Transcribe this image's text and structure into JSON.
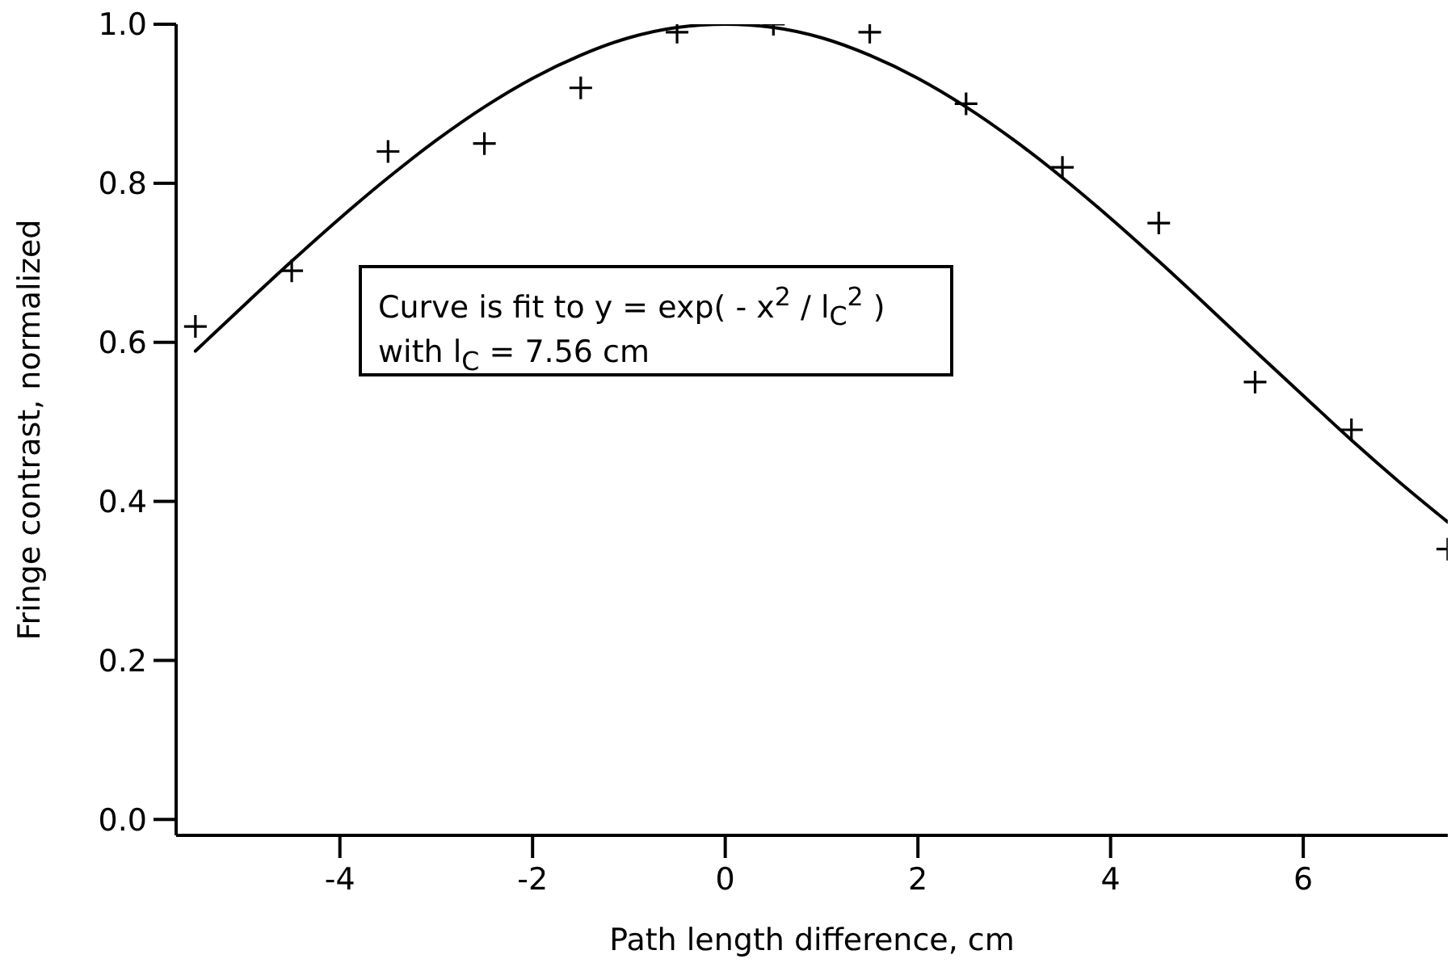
{
  "chart_data": {
    "type": "scatter",
    "xlabel": "Path length difference, cm",
    "ylabel": "Fringe contrast, normalized",
    "annotations": [
      "Curve is fit to y = exp( - x$^{2}$ / l$_{C}$$^{2}$ )",
      "with l$_{C}$ = 7.56 cm"
    ],
    "xlim": [
      -5.7,
      7.5
    ],
    "ylim": [
      -0.02,
      1.0
    ],
    "xticks": [
      -4,
      -2,
      0,
      2,
      4,
      6
    ],
    "yticks": [
      {
        "value": 0,
        "label": "0.0"
      },
      0.2,
      0.4,
      0.6,
      0.8,
      {
        "value": 1,
        "label": "1.0"
      }
    ],
    "series": [
      {
        "color": "#000000",
        "marker": "cross",
        "x": [
          -5.5,
          -4.5,
          -3.5,
          -2.5,
          -1.5,
          -0.5,
          0.5,
          1.5,
          2.5,
          3.5,
          4.5,
          5.5,
          6.5,
          7.5
        ],
        "values": [
          0.62,
          0.69,
          0.84,
          0.85,
          0.92,
          0.99,
          1.0,
          0.99,
          0.9,
          0.82,
          0.75,
          0.55,
          0.49,
          0.34
        ]
      },
      {
        "type": "line",
        "color": "#000000",
        "marker": "none",
        "line_style": "solid",
        "x": [
          -5.5,
          -5,
          -4.5,
          -4,
          -3.5,
          -3,
          -2.5,
          -2,
          -1.5,
          -1,
          -0.5,
          0,
          0.5,
          1,
          1.5,
          2,
          2.5,
          3,
          3.5,
          4,
          4.5,
          5,
          5.5,
          6,
          6.5,
          7,
          7.5
        ],
        "values": [
          0.589,
          0.646,
          0.702,
          0.756,
          0.807,
          0.854,
          0.896,
          0.932,
          0.961,
          0.983,
          0.996,
          1.0,
          0.996,
          0.983,
          0.961,
          0.932,
          0.896,
          0.854,
          0.807,
          0.756,
          0.702,
          0.646,
          0.589,
          0.533,
          0.477,
          0.424,
          0.374
        ]
      }
    ]
  }
}
